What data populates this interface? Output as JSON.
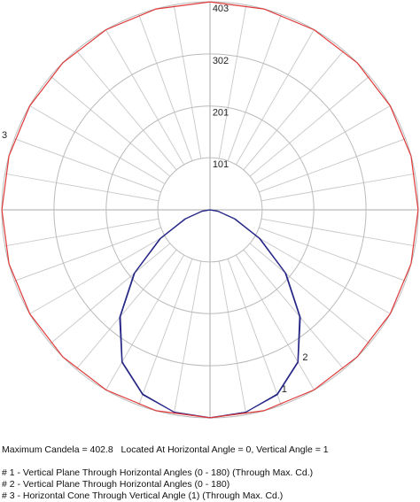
{
  "chart_data": {
    "type": "polar",
    "rlim": [
      0,
      403
    ],
    "rticks": [
      101,
      201,
      302,
      403
    ],
    "spoke_step": 10,
    "series": [
      {
        "name": "# 1 - Vertical Plane Through Horizontal Angles (0 - 180) (Through Max. Cd.)",
        "label": "1",
        "color": "#1a1a7a",
        "angles": [
          -90,
          -80,
          -70,
          -60,
          -50,
          -40,
          -30,
          -20,
          -10,
          0,
          10,
          20,
          30,
          40,
          50,
          60,
          70,
          80,
          90
        ],
        "values": [
          0,
          15,
          50,
          110,
          190,
          270,
          340,
          380,
          398,
          402.8,
          398,
          380,
          340,
          270,
          190,
          110,
          50,
          15,
          0
        ]
      },
      {
        "name": "# 2 - Vertical Plane Through Horizontal Angles (0 - 180)",
        "label": "2",
        "color": "#2a2a8a",
        "angles": [
          -90,
          -80,
          -70,
          -60,
          -50,
          -40,
          -30,
          -20,
          -10,
          0,
          10,
          20,
          30,
          40,
          50,
          60,
          70,
          80,
          90
        ],
        "values": [
          0,
          16,
          52,
          112,
          192,
          272,
          341,
          381,
          398,
          402.8,
          398,
          381,
          341,
          272,
          192,
          112,
          52,
          16,
          0
        ]
      },
      {
        "name": "# 3 - Horizontal Cone Through Vertical Angle (1) (Through Max. Cd.)",
        "label": "3",
        "color": "#e03a3a",
        "angles": [
          0,
          15,
          30,
          45,
          60,
          75,
          90,
          105,
          120,
          135,
          150,
          165,
          180,
          195,
          210,
          225,
          240,
          255,
          270,
          285,
          300,
          315,
          330,
          345
        ],
        "values": [
          402.8,
          402.8,
          402.8,
          402.8,
          402.8,
          402.8,
          402.8,
          402.8,
          402.8,
          402.8,
          402.8,
          402.8,
          402.8,
          402.8,
          402.8,
          402.8,
          402.8,
          402.8,
          402.8,
          402.8,
          402.8,
          402.8,
          402.8,
          402.8
        ]
      }
    ],
    "note": "Maximum Candela = 402.8   Located At Horizontal Angle = 0, Vertical Angle = 1"
  }
}
